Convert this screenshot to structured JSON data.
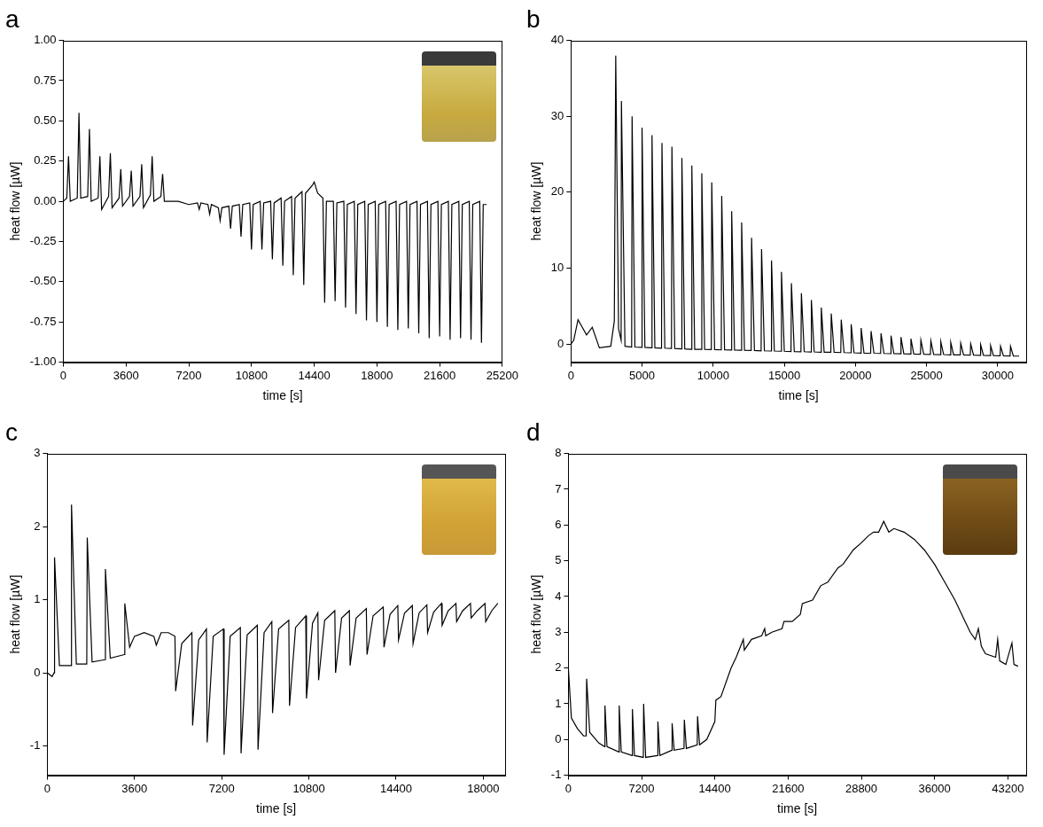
{
  "chart_data": [
    {
      "type": "line",
      "title": "a",
      "x_label": "time [s]",
      "y_label": "heat flow [µW]",
      "color": "#000000",
      "grid": false,
      "xlim": [
        0,
        25200
      ],
      "xticks": [
        0,
        3600,
        7200,
        10800,
        14400,
        18000,
        21600,
        25200
      ],
      "ylim": [
        -1,
        1
      ],
      "yticks": [
        {
          "value": -1,
          "label": "-1.00"
        },
        {
          "value": -0.75,
          "label": "-0.75"
        },
        {
          "value": -0.5,
          "label": "-0.50"
        },
        {
          "value": -0.25,
          "label": "-0.25"
        },
        {
          "value": 0,
          "label": "0.00"
        },
        {
          "value": 0.25,
          "label": "0.25"
        },
        {
          "value": 0.5,
          "label": "0.50"
        },
        {
          "value": 0.75,
          "label": "0.75"
        },
        {
          "value": 1,
          "label": "1.00"
        }
      ],
      "x": [
        0,
        200,
        300,
        400,
        800,
        900,
        1000,
        1400,
        1500,
        1600,
        2000,
        2100,
        2200,
        2600,
        2700,
        2800,
        3200,
        3300,
        3400,
        3800,
        3900,
        4000,
        4400,
        4500,
        4600,
        5000,
        5100,
        5200,
        5600,
        5700,
        5800,
        6600,
        7200,
        7700,
        7800,
        7900,
        8300,
        8400,
        8500,
        8900,
        9000,
        9100,
        9500,
        9600,
        9700,
        10100,
        10200,
        10300,
        10700,
        10800,
        10900,
        11300,
        11400,
        11500,
        11900,
        12000,
        12100,
        12500,
        12600,
        12700,
        13100,
        13200,
        13300,
        13700,
        13800,
        13900,
        14300,
        14400,
        14600,
        14900,
        15000,
        15100,
        15500,
        15600,
        15700,
        16100,
        16200,
        16300,
        16700,
        16800,
        16900,
        17300,
        17400,
        17500,
        17900,
        18000,
        18100,
        18500,
        18600,
        18700,
        19100,
        19200,
        19300,
        19700,
        19800,
        19900,
        20300,
        20400,
        20500,
        20900,
        21000,
        21100,
        21500,
        21600,
        21700,
        22100,
        22200,
        22300,
        22700,
        22800,
        22900,
        23300,
        23400,
        23500,
        23900,
        24000,
        24100,
        24300
      ],
      "values": [
        0,
        0.02,
        0.28,
        0,
        0.02,
        0.55,
        0.02,
        0.03,
        0.45,
        0,
        0.02,
        0.28,
        -0.05,
        0.03,
        0.3,
        -0.04,
        0.02,
        0.2,
        -0.03,
        0.03,
        0.19,
        -0.03,
        0.03,
        0.23,
        -0.04,
        0.04,
        0.28,
        0,
        0.03,
        0.17,
        0,
        0,
        -0.02,
        -0.01,
        -0.05,
        -0.01,
        -0.02,
        -0.08,
        -0.02,
        -0.04,
        -0.12,
        -0.04,
        -0.03,
        -0.17,
        -0.03,
        -0.02,
        -0.22,
        -0.02,
        -0.01,
        -0.3,
        -0.02,
        0,
        -0.3,
        -0.01,
        0,
        -0.36,
        -0.01,
        0.02,
        -0.4,
        0,
        0.03,
        -0.46,
        0.02,
        0.06,
        -0.52,
        0.05,
        0.1,
        0.12,
        0.05,
        0.02,
        -0.63,
        0,
        0,
        -0.62,
        -0.01,
        0,
        -0.66,
        -0.02,
        0,
        -0.7,
        -0.02,
        0,
        -0.74,
        -0.02,
        0,
        -0.75,
        -0.02,
        0,
        -0.78,
        -0.02,
        0,
        -0.8,
        -0.02,
        0,
        -0.79,
        -0.02,
        0,
        -0.82,
        -0.02,
        0,
        -0.85,
        -0.02,
        0,
        -0.84,
        -0.02,
        0,
        -0.86,
        -0.02,
        0,
        -0.85,
        -0.02,
        0,
        -0.86,
        -0.02,
        0,
        -0.88,
        -0.02,
        -0.02
      ]
    },
    {
      "type": "line",
      "title": "b",
      "x_label": "time [s]",
      "y_label": "heat flow [µW]",
      "color": "#000000",
      "grid": false,
      "xlim": [
        0,
        32000
      ],
      "xticks": [
        0,
        5000,
        10000,
        15000,
        20000,
        25000,
        30000
      ],
      "ylim": [
        -2.4,
        40
      ],
      "yticks": [
        0,
        10,
        20,
        30,
        40
      ],
      "x": [
        0,
        200,
        500,
        800,
        1100,
        1500,
        2000,
        2800,
        3050,
        3150,
        3350,
        3530,
        3550,
        3800,
        4270,
        4300,
        4500,
        4970,
        5000,
        5200,
        5670,
        5700,
        5900,
        6370,
        6400,
        6600,
        7070,
        7100,
        7300,
        7770,
        7800,
        8000,
        8470,
        8500,
        8700,
        9170,
        9200,
        9400,
        9870,
        9900,
        10100,
        10570,
        10600,
        10800,
        11270,
        11300,
        11500,
        11970,
        12000,
        12200,
        12670,
        12700,
        12900,
        13370,
        13400,
        13600,
        14070,
        14100,
        14300,
        14770,
        14800,
        15000,
        15470,
        15500,
        15700,
        16170,
        16200,
        16400,
        16870,
        16900,
        17100,
        17570,
        17600,
        17800,
        18270,
        18300,
        18500,
        18970,
        19000,
        19200,
        19670,
        19700,
        19900,
        20370,
        20400,
        20600,
        21070,
        21100,
        21300,
        21770,
        21800,
        22000,
        22470,
        22500,
        22700,
        23170,
        23200,
        23400,
        23870,
        23900,
        24100,
        24570,
        24600,
        24800,
        25270,
        25300,
        25500,
        25970,
        26000,
        26200,
        26670,
        26700,
        26900,
        27370,
        27400,
        27600,
        28070,
        28100,
        28300,
        28770,
        28800,
        29000,
        29470,
        29500,
        29700,
        30170,
        30200,
        30400,
        30870,
        30900,
        31100,
        31500
      ],
      "values": [
        0,
        0.5,
        3.2,
        2.2,
        1.2,
        2.2,
        -0.5,
        -0.3,
        3.0,
        38,
        2.0,
        0.5,
        32,
        -0.3,
        -0.4,
        30,
        -0.4,
        -0.45,
        28.5,
        -0.45,
        -0.5,
        27.5,
        -0.5,
        -0.55,
        26.5,
        -0.55,
        -0.6,
        26,
        -0.6,
        -0.65,
        24.5,
        -0.65,
        -0.7,
        23.5,
        -0.7,
        -0.72,
        22.5,
        -0.72,
        -0.75,
        21.3,
        -0.75,
        -0.78,
        19.5,
        -0.78,
        -0.8,
        17.5,
        -0.8,
        -0.83,
        16,
        -0.83,
        -0.86,
        14,
        -0.86,
        -0.9,
        12.5,
        -0.9,
        -0.93,
        11,
        -0.93,
        -0.96,
        9.5,
        -0.96,
        -1.0,
        8,
        -1.0,
        -1.02,
        6.7,
        -1.02,
        -1.05,
        5.8,
        -1.05,
        -1.08,
        4.8,
        -1.08,
        -1.1,
        4.0,
        -1.1,
        -1.13,
        3.2,
        -1.13,
        -1.16,
        2.6,
        -1.16,
        -1.2,
        2.1,
        -1.2,
        -1.22,
        1.7,
        -1.22,
        -1.25,
        1.4,
        -1.25,
        -1.28,
        1.1,
        -1.28,
        -1.3,
        0.9,
        -1.3,
        -1.33,
        0.7,
        -1.33,
        -1.36,
        0.5,
        -1.36,
        -1.38,
        0.4,
        -1.38,
        -1.4,
        0.3,
        -1.4,
        -1.43,
        0.2,
        -1.43,
        -1.45,
        0.1,
        -1.45,
        -1.48,
        0,
        -1.48,
        -1.5,
        -0.1,
        -1.5,
        -1.52,
        -0.2,
        -1.52,
        -1.55,
        -0.3,
        -1.55,
        -1.58,
        -0.3,
        -1.58,
        -1.6
      ]
    },
    {
      "type": "line",
      "title": "c",
      "x_label": "time [s]",
      "y_label": "heat flow [µW]",
      "color": "#000000",
      "grid": false,
      "xlim": [
        0,
        18900
      ],
      "xticks": [
        0,
        3600,
        7200,
        10800,
        14400,
        18000
      ],
      "ylim": [
        -1.4,
        3
      ],
      "yticks": [
        -1,
        0,
        1,
        2,
        3
      ],
      "x": [
        0,
        200,
        280,
        300,
        500,
        980,
        1000,
        1200,
        1630,
        1650,
        1850,
        2380,
        2400,
        2600,
        3180,
        3200,
        3400,
        3600,
        4000,
        4400,
        4500,
        4700,
        5000,
        5270,
        5300,
        5550,
        5970,
        6000,
        6250,
        6570,
        6600,
        6850,
        7270,
        7300,
        7550,
        7970,
        8000,
        8250,
        8670,
        8700,
        8950,
        9270,
        9300,
        9550,
        9970,
        10000,
        10250,
        10670,
        10700,
        10950,
        11170,
        11200,
        11450,
        11870,
        11900,
        12150,
        12470,
        12500,
        12750,
        13170,
        13200,
        13450,
        13870,
        13900,
        14150,
        14470,
        14500,
        14750,
        15070,
        15100,
        15350,
        15670,
        15700,
        15950,
        16270,
        16300,
        16550,
        16870,
        16900,
        17150,
        17470,
        17500,
        17750,
        18070,
        18100,
        18350,
        18600
      ],
      "values": [
        0,
        -0.05,
        0,
        1.58,
        0.1,
        0.1,
        2.3,
        0.12,
        0.12,
        1.85,
        0.15,
        0.18,
        1.42,
        0.2,
        0.25,
        0.95,
        0.35,
        0.5,
        0.55,
        0.5,
        0.38,
        0.55,
        0.55,
        0.5,
        -0.25,
        0.4,
        0.55,
        -0.72,
        0.45,
        0.6,
        -0.95,
        0.5,
        0.6,
        -1.12,
        0.5,
        0.62,
        -1.1,
        0.52,
        0.65,
        -1.05,
        0.55,
        0.7,
        -0.55,
        0.6,
        0.72,
        -0.45,
        0.62,
        0.78,
        -0.35,
        0.68,
        0.82,
        -0.1,
        0.72,
        0.85,
        0,
        0.75,
        0.85,
        0.1,
        0.75,
        0.88,
        0.25,
        0.78,
        0.9,
        0.35,
        0.8,
        0.92,
        0.45,
        0.82,
        0.92,
        0.4,
        0.82,
        0.93,
        0.55,
        0.83,
        0.95,
        0.65,
        0.85,
        0.95,
        0.7,
        0.85,
        0.95,
        0.75,
        0.85,
        0.95,
        0.7,
        0.85,
        0.95
      ]
    },
    {
      "type": "line",
      "title": "d",
      "x_label": "time [s]",
      "y_label": "heat flow [µW]",
      "color": "#000000",
      "grid": false,
      "xlim": [
        0,
        45000
      ],
      "xticks": [
        0,
        7200,
        14400,
        21600,
        28800,
        36000,
        43200
      ],
      "ylim": [
        -1,
        8
      ],
      "yticks": [
        -1,
        0,
        1,
        2,
        3,
        4,
        5,
        6,
        7,
        8
      ],
      "x": [
        0,
        300,
        900,
        1500,
        1750,
        1800,
        2100,
        3000,
        3570,
        3600,
        3800,
        4970,
        5000,
        5200,
        6270,
        6300,
        6500,
        7370,
        7400,
        7600,
        8770,
        8800,
        9000,
        10170,
        10200,
        10400,
        11370,
        11400,
        11600,
        12670,
        12700,
        12900,
        13600,
        14400,
        14500,
        15000,
        16000,
        16500,
        17200,
        17300,
        18000,
        19000,
        19300,
        19400,
        20000,
        21000,
        21200,
        22000,
        22800,
        23000,
        24000,
        24800,
        25500,
        26500,
        27000,
        28000,
        28800,
        29500,
        30000,
        30500,
        31000,
        31500,
        32000,
        33000,
        34000,
        35000,
        36000,
        37000,
        38000,
        39000,
        39500,
        40000,
        40300,
        40600,
        41000,
        42000,
        42200,
        42400,
        43000,
        43600,
        43800,
        44200
      ],
      "values": [
        2.0,
        0.6,
        0.3,
        0.1,
        0.1,
        1.7,
        0.2,
        -0.1,
        -0.2,
        0.95,
        -0.2,
        -0.35,
        0.95,
        -0.35,
        -0.45,
        0.85,
        -0.45,
        -0.5,
        1.0,
        -0.5,
        -0.45,
        0.5,
        -0.45,
        -0.3,
        0.45,
        -0.3,
        -0.25,
        0.55,
        -0.25,
        -0.15,
        0.65,
        -0.15,
        0,
        0.5,
        1.1,
        1.2,
        2.0,
        2.3,
        2.8,
        2.5,
        2.8,
        2.9,
        3.1,
        2.9,
        3.0,
        3.1,
        3.3,
        3.3,
        3.5,
        3.8,
        3.9,
        4.3,
        4.4,
        4.8,
        4.9,
        5.3,
        5.5,
        5.7,
        5.8,
        5.8,
        6.1,
        5.8,
        5.9,
        5.8,
        5.6,
        5.3,
        4.9,
        4.4,
        3.9,
        3.3,
        3.0,
        2.8,
        3.1,
        2.6,
        2.4,
        2.3,
        2.8,
        2.2,
        2.1,
        2.7,
        2.1,
        2.05
      ]
    }
  ]
}
